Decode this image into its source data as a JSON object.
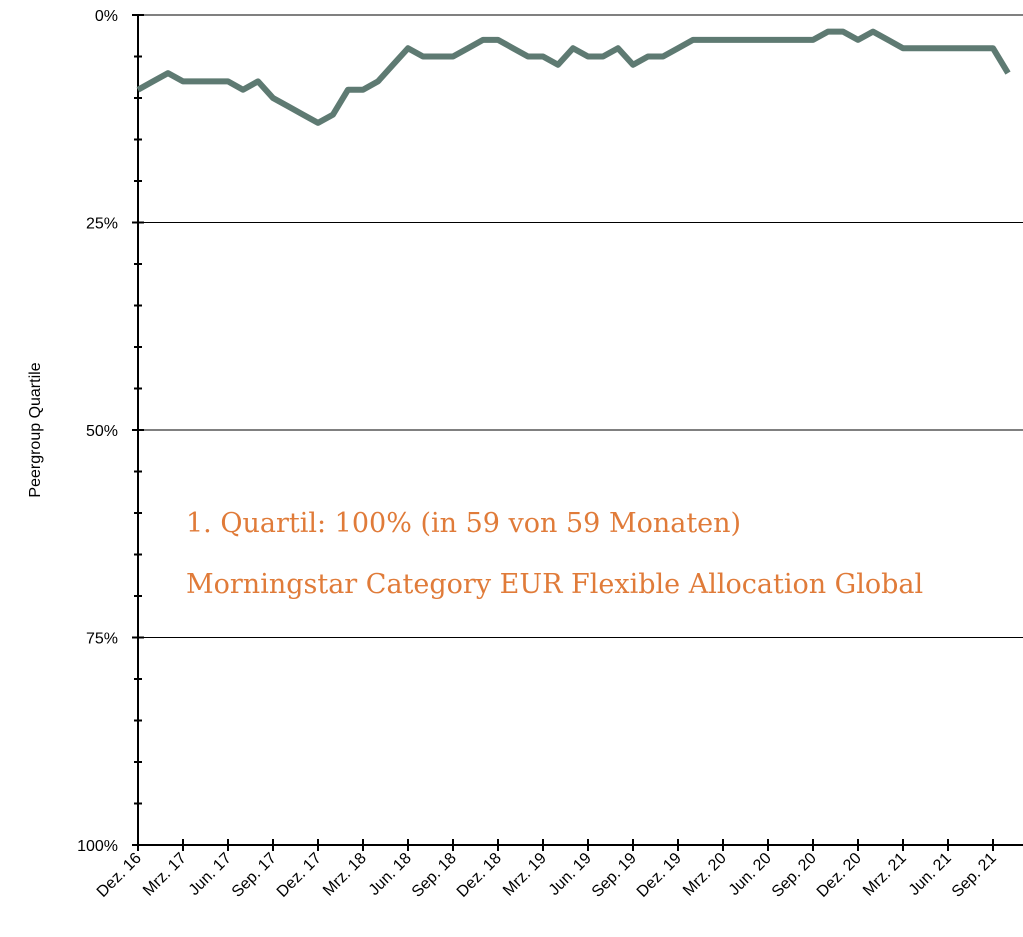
{
  "chart_data": {
    "type": "line",
    "y_label": "Peergroup Quartile",
    "annotations": [
      "1. Quartil: 100% (in 59 von 59 Monaten)",
      "Morningstar Category EUR Flexible Allocation Global"
    ],
    "categories": [
      "Dez. 16",
      null,
      null,
      "Mrz. 17",
      null,
      null,
      "Jun. 17",
      null,
      null,
      "Sep. 17",
      null,
      null,
      "Dez. 17",
      null,
      null,
      "Mrz. 18",
      null,
      null,
      "Jun. 18",
      null,
      null,
      "Sep. 18",
      null,
      null,
      "Dez. 18",
      null,
      null,
      "Mrz. 19",
      null,
      null,
      "Jun. 19",
      null,
      null,
      "Sep. 19",
      null,
      null,
      "Dez. 19",
      null,
      null,
      "Mrz. 20",
      null,
      null,
      "Jun. 20",
      null,
      null,
      "Sep. 20",
      null,
      null,
      "Dez. 20",
      null,
      null,
      "Mrz. 21",
      null,
      null,
      "Jun. 21",
      null,
      null,
      "Sep. 21",
      null
    ],
    "series": [
      {
        "color": "#5e7a72",
        "values": [
          9,
          8,
          7,
          8,
          8,
          8,
          8,
          9,
          8,
          10,
          11,
          12,
          13,
          12,
          9,
          9,
          8,
          6,
          4,
          5,
          5,
          5,
          4,
          3,
          3,
          4,
          5,
          5,
          6,
          4,
          5,
          5,
          4,
          6,
          5,
          5,
          4,
          3,
          3,
          3,
          3,
          3,
          3,
          3,
          3,
          3,
          2,
          2,
          3,
          2,
          3,
          4,
          4,
          4,
          4,
          4,
          4,
          4,
          7
        ]
      }
    ],
    "ylim": [
      0,
      100
    ],
    "y_inverted": true,
    "yticks": [
      {
        "value": 0,
        "label": "0%"
      },
      {
        "value": 25,
        "label": "25%"
      },
      {
        "value": 50,
        "label": "50%"
      },
      {
        "value": 75,
        "label": "75%"
      },
      {
        "value": 100,
        "label": "100%"
      }
    ],
    "yminor_ticks": [
      5,
      10,
      15,
      20,
      30,
      35,
      40,
      45,
      55,
      60,
      65,
      70,
      80,
      85,
      90,
      95
    ],
    "grid": true
  }
}
